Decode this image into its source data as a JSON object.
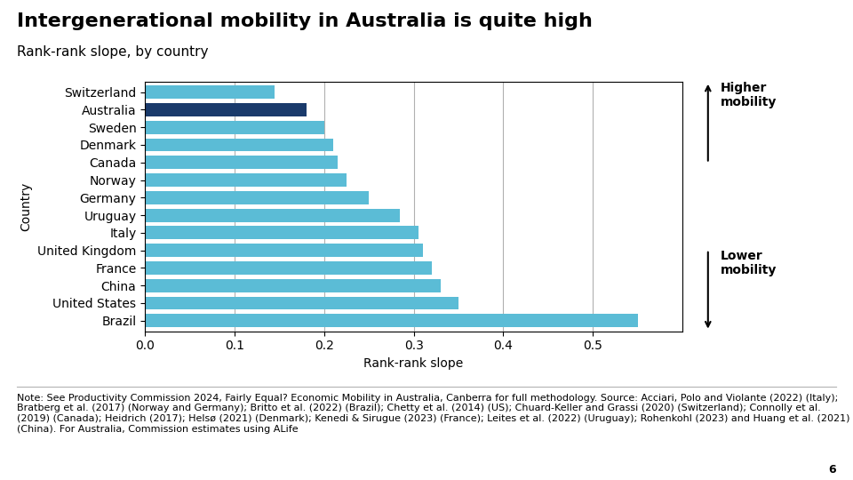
{
  "chart_data": {
    "type": "bar",
    "orientation": "horizontal",
    "title": "Intergenerational mobility in Australia is quite high",
    "subtitle": "Rank-rank slope, by country",
    "xlabel": "Rank-rank slope",
    "ylabel": "Country",
    "categories": [
      "Brazil",
      "United States",
      "China",
      "France",
      "United Kingdom",
      "Italy",
      "Uruguay",
      "Germany",
      "Norway",
      "Canada",
      "Denmark",
      "Sweden",
      "Australia",
      "Switzerland"
    ],
    "values": [
      0.55,
      0.35,
      0.33,
      0.32,
      0.31,
      0.305,
      0.285,
      0.25,
      0.225,
      0.215,
      0.21,
      0.2,
      0.18,
      0.145
    ],
    "colors": [
      "#5bbcd6",
      "#5bbcd6",
      "#5bbcd6",
      "#5bbcd6",
      "#5bbcd6",
      "#5bbcd6",
      "#5bbcd6",
      "#5bbcd6",
      "#5bbcd6",
      "#5bbcd6",
      "#5bbcd6",
      "#5bbcd6",
      "#1a3a6b",
      "#5bbcd6"
    ],
    "xlim": [
      0,
      0.6
    ],
    "xticks": [
      0.0,
      0.1,
      0.2,
      0.3,
      0.4,
      0.5
    ],
    "grid": true,
    "annotations": [
      "Higher\nmobility",
      "Lower\nmobility"
    ],
    "note": "Note: See Productivity Commission 2024, Fairly Equal? Economic Mobility in Australia, Canberra for full methodology. Source: Acciari, Polo and Violante (2022) (Italy); Bratberg et al. (2017) (Norway and Germany); Britto et al. (2022) (Brazil); Chetty et al. (2014) (US); Chuard-Keller and Grassi (2020) (Switzerland); Connolly et al. (2019) (Canada); Heidrich (2017); Helsø (2021) (Denmark); Kenedi & Sirugue (2023) (France); Leites et al. (2022) (Uruguay); Rohenkohl (2023) and Huang et al. (2021) (China). For Australia, Commission estimates using ALife",
    "page_number": "6"
  }
}
